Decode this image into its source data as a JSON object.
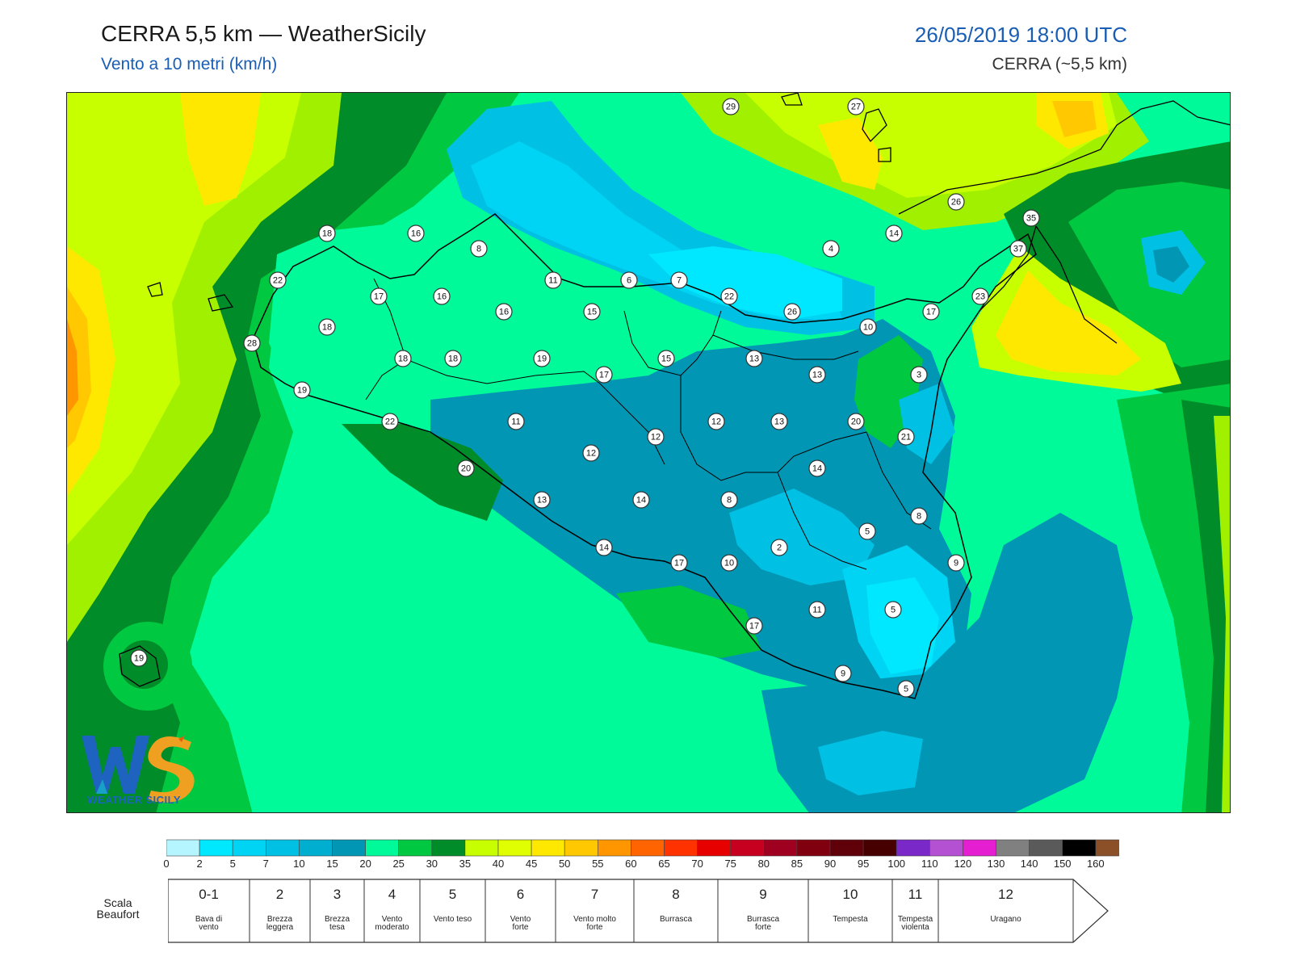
{
  "header": {
    "title": "CERRA 5,5 km — WeatherSicily",
    "subtitle": "Vento a 10 metri (km/h)",
    "datetime": "26/05/2019 18:00 UTC",
    "model": "CERRA (~5,5 km)"
  },
  "logo": {
    "text": "WEATHER SICILY",
    "mark": "WS"
  },
  "colors": {
    "sea_light": "#00fa9a",
    "green_mid": "#00c840",
    "green_dark": "#008c28",
    "yellow_green": "#c8ff00",
    "lime": "#a0f000",
    "yellow": "#ffe800",
    "orange": "#ffb000",
    "cyan_mid": "#00b8e0",
    "cyan_dark": "#0096b4",
    "cyan_light": "#00e8ff",
    "teal_blue": "#0090a8"
  },
  "stations": [
    {
      "v": "29"
    },
    {
      "v": "27"
    },
    {
      "v": "26"
    },
    {
      "v": "35"
    },
    {
      "v": "37"
    },
    {
      "v": "18"
    },
    {
      "v": "16"
    },
    {
      "v": "8"
    },
    {
      "v": "22"
    },
    {
      "v": "11"
    },
    {
      "v": "6"
    },
    {
      "v": "7"
    },
    {
      "v": "4"
    },
    {
      "v": "14"
    },
    {
      "v": "17"
    },
    {
      "v": "16"
    },
    {
      "v": "16"
    },
    {
      "v": "15"
    },
    {
      "v": "22"
    },
    {
      "v": "26"
    },
    {
      "v": "17"
    },
    {
      "v": "23"
    },
    {
      "v": "18"
    },
    {
      "v": "10"
    },
    {
      "v": "28"
    },
    {
      "v": "18"
    },
    {
      "v": "18"
    },
    {
      "v": "19"
    },
    {
      "v": "15"
    },
    {
      "v": "13"
    },
    {
      "v": "3"
    },
    {
      "v": "17"
    },
    {
      "v": "13"
    },
    {
      "v": "19"
    },
    {
      "v": "11"
    },
    {
      "v": "12"
    },
    {
      "v": "13"
    },
    {
      "v": "20"
    },
    {
      "v": "22"
    },
    {
      "v": "12"
    },
    {
      "v": "21"
    },
    {
      "v": "12"
    },
    {
      "v": "14"
    },
    {
      "v": "20"
    },
    {
      "v": "8"
    },
    {
      "v": "13"
    },
    {
      "v": "14"
    },
    {
      "v": "8"
    },
    {
      "v": "5"
    },
    {
      "v": "2"
    },
    {
      "v": "14"
    },
    {
      "v": "17"
    },
    {
      "v": "10"
    },
    {
      "v": "9"
    },
    {
      "v": "11"
    },
    {
      "v": "5"
    },
    {
      "v": "17"
    },
    {
      "v": "19"
    },
    {
      "v": "9"
    },
    {
      "v": "5"
    }
  ],
  "colorbar": {
    "colors": [
      "#b4f5ff",
      "#00e8ff",
      "#00d4f4",
      "#00c0e4",
      "#00aed0",
      "#0096b4",
      "#00fa9a",
      "#00c840",
      "#008c28",
      "#c8ff00",
      "#e0ff00",
      "#ffe800",
      "#ffc800",
      "#ff9600",
      "#ff6400",
      "#ff3200",
      "#e60000",
      "#c80020",
      "#a00020",
      "#800010",
      "#600008",
      "#460000",
      "#7a28c8",
      "#b450d2",
      "#e61ed2",
      "#808080",
      "#5a5a5a",
      "#000000",
      "#8c5028",
      "#c88246"
    ],
    "ticks": [
      "0",
      "2",
      "5",
      "7",
      "10",
      "15",
      "20",
      "25",
      "30",
      "35",
      "40",
      "45",
      "50",
      "55",
      "60",
      "65",
      "70",
      "75",
      "80",
      "85",
      "90",
      "95",
      "100",
      "110",
      "120",
      "130",
      "140",
      "150",
      "160"
    ]
  },
  "beaufort": {
    "title": "Scala Beaufort",
    "classes": [
      {
        "num": "0-1",
        "desc": "Bava di\nvento"
      },
      {
        "num": "2",
        "desc": "Brezza\nleggera"
      },
      {
        "num": "3",
        "desc": "Brezza\ntesa"
      },
      {
        "num": "4",
        "desc": "Vento\nmoderato"
      },
      {
        "num": "5",
        "desc": "Vento teso"
      },
      {
        "num": "6",
        "desc": "Vento\nforte"
      },
      {
        "num": "7",
        "desc": "Vento molto\nforte"
      },
      {
        "num": "8",
        "desc": "Burrasca"
      },
      {
        "num": "9",
        "desc": "Burrasca\nforte"
      },
      {
        "num": "10",
        "desc": "Tempesta"
      },
      {
        "num": "11",
        "desc": "Tempesta\nviolenta"
      },
      {
        "num": "12",
        "desc": "Uragano"
      }
    ]
  }
}
